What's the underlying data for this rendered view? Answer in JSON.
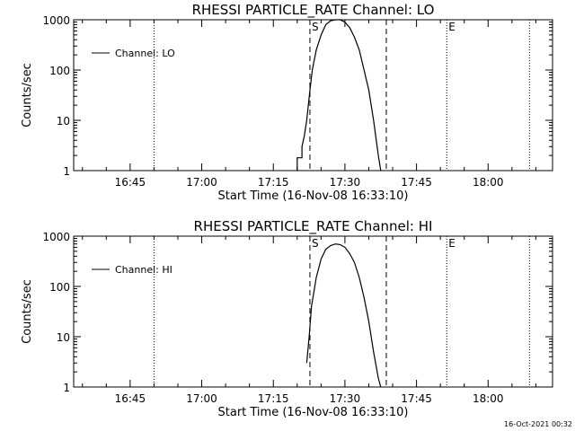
{
  "chart_data": [
    {
      "type": "line",
      "title": "RHESSI PARTICLE_RATE Channel: LO",
      "xlabel": "Start Time (16-Nov-08 16:33:10)",
      "ylabel": "Counts/sec",
      "yscale": "log",
      "ylim": [
        1,
        1000
      ],
      "xlim": [
        "16:33:10",
        "18:13:30"
      ],
      "x_ticks": [
        "16:45",
        "17:00",
        "17:15",
        "17:30",
        "17:45",
        "18:00"
      ],
      "y_ticks": [
        "1",
        "10",
        "100",
        "1000"
      ],
      "legend": {
        "position": "top-left",
        "entries": [
          "Channel: LO"
        ]
      },
      "markers": [
        {
          "label": "",
          "style": "dotted",
          "time": "16:50:00"
        },
        {
          "label": "S",
          "style": "dashed",
          "time": "17:22:40"
        },
        {
          "label": "",
          "style": "dashed",
          "time": "17:38:40"
        },
        {
          "label": "E",
          "style": "dotted",
          "time": "17:51:20"
        },
        {
          "label": "",
          "style": "dotted",
          "time": "18:08:40"
        }
      ],
      "series": [
        {
          "name": "Channel: LO",
          "x": [
            "17:20:00",
            "17:20:00",
            "17:21:00",
            "17:21:00",
            "17:21:30",
            "17:22:00",
            "17:22:40",
            "17:23:10",
            "17:24:00",
            "17:25:00",
            "17:26:00",
            "17:27:00",
            "17:28:00",
            "17:29:00",
            "17:30:00",
            "17:31:00",
            "17:32:00",
            "17:33:00",
            "17:34:00",
            "17:35:00",
            "17:36:00",
            "17:37:00",
            "17:37:30"
          ],
          "y": [
            1,
            1.8,
            1.8,
            3,
            5,
            10,
            40,
            100,
            250,
            500,
            800,
            950,
            1000,
            1000,
            900,
            700,
            450,
            250,
            100,
            40,
            10,
            2,
            1
          ]
        }
      ]
    },
    {
      "type": "line",
      "title": "RHESSI PARTICLE_RATE Channel: HI",
      "xlabel": "Start Time (16-Nov-08 16:33:10)",
      "ylabel": "Counts/sec",
      "yscale": "log",
      "ylim": [
        1,
        1000
      ],
      "xlim": [
        "16:33:10",
        "18:13:30"
      ],
      "x_ticks": [
        "16:45",
        "17:00",
        "17:15",
        "17:30",
        "17:45",
        "18:00"
      ],
      "y_ticks": [
        "1",
        "10",
        "100",
        "1000"
      ],
      "legend": {
        "position": "top-left",
        "entries": [
          "Channel: HI"
        ]
      },
      "markers": [
        {
          "label": "",
          "style": "dotted",
          "time": "16:50:00"
        },
        {
          "label": "S",
          "style": "dashed",
          "time": "17:22:40"
        },
        {
          "label": "",
          "style": "dashed",
          "time": "17:38:40"
        },
        {
          "label": "E",
          "style": "dotted",
          "time": "17:51:20"
        },
        {
          "label": "",
          "style": "dotted",
          "time": "18:08:40"
        }
      ],
      "series": [
        {
          "name": "Channel: HI",
          "x": [
            "17:22:00",
            "17:22:30",
            "17:23:00",
            "17:24:00",
            "17:25:00",
            "17:26:00",
            "17:27:00",
            "17:28:00",
            "17:29:00",
            "17:30:00",
            "17:31:00",
            "17:32:00",
            "17:33:00",
            "17:34:00",
            "17:35:00",
            "17:36:00",
            "17:37:00",
            "17:37:30"
          ],
          "y": [
            3,
            10,
            40,
            150,
            350,
            550,
            650,
            700,
            680,
            600,
            450,
            300,
            150,
            60,
            20,
            5,
            1.5,
            1
          ]
        }
      ]
    }
  ],
  "timestamp": "16-Oct-2021 00:32"
}
